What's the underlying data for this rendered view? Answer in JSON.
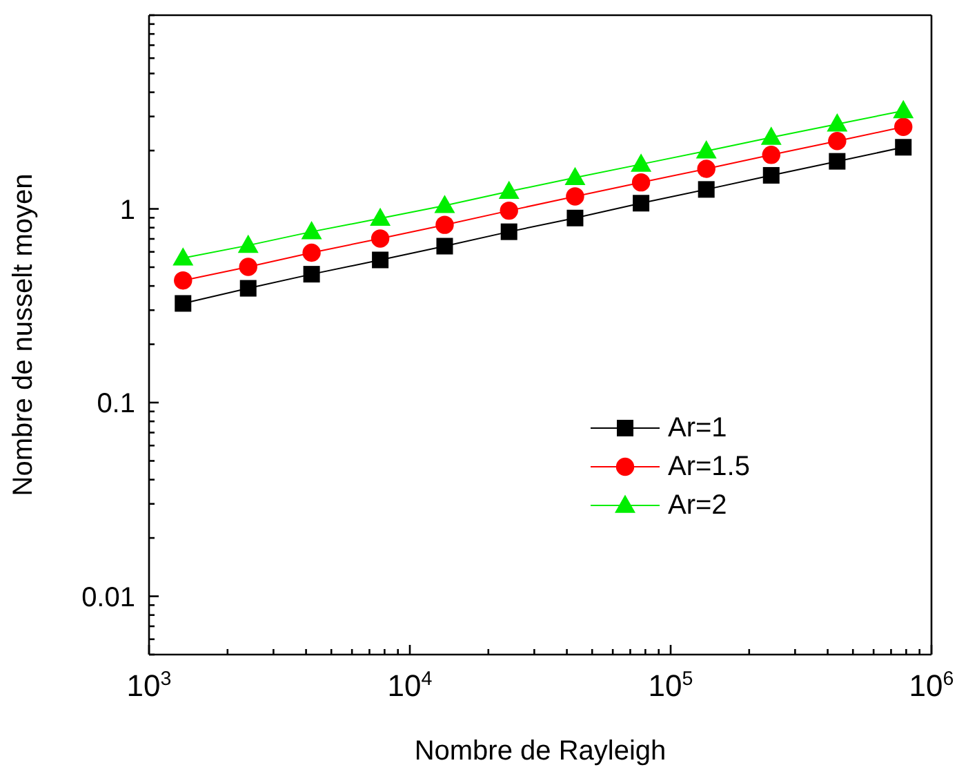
{
  "chart_data": {
    "type": "line",
    "xlabel": "Nombre de Rayleigh",
    "ylabel": "Nombre de nusselt moyen",
    "log": "xy",
    "legend": "right",
    "grid": false,
    "line_style": "solid",
    "x": [
      1350,
      2400,
      4200,
      7700,
      13600,
      24000,
      43000,
      77000,
      137000,
      243000,
      435000,
      780000
    ],
    "xlim": [
      1000,
      1000000
    ],
    "xticks": [
      {
        "value": 1000,
        "label": "10$^{3}$"
      },
      {
        "value": 2000,
        "label": null
      },
      {
        "value": 3000,
        "label": null
      },
      {
        "value": 4000,
        "label": null
      },
      {
        "value": 5000,
        "label": null
      },
      {
        "value": 6000,
        "label": null
      },
      {
        "value": 7000,
        "label": null
      },
      {
        "value": 8000,
        "label": null
      },
      {
        "value": 9000,
        "label": null
      },
      {
        "value": 10000,
        "label": "10$^{4}$"
      },
      {
        "value": 20000,
        "label": null
      },
      {
        "value": 30000,
        "label": null
      },
      {
        "value": 40000,
        "label": null
      },
      {
        "value": 50000,
        "label": null
      },
      {
        "value": 60000,
        "label": null
      },
      {
        "value": 70000,
        "label": null
      },
      {
        "value": 80000,
        "label": null
      },
      {
        "value": 90000,
        "label": null
      },
      {
        "value": 100000,
        "label": "10$^{5}$"
      },
      {
        "value": 200000,
        "label": null
      },
      {
        "value": 300000,
        "label": null
      },
      {
        "value": 400000,
        "label": null
      },
      {
        "value": 500000,
        "label": null
      },
      {
        "value": 600000,
        "label": null
      },
      {
        "value": 700000,
        "label": null
      },
      {
        "value": 800000,
        "label": null
      },
      {
        "value": 900000,
        "label": null
      },
      {
        "value": 1000000,
        "label": "10$^{6}$"
      }
    ],
    "ylim": [
      0.005,
      10
    ],
    "yticks": [
      {
        "value": 0.005,
        "label": null
      },
      {
        "value": 0.006,
        "label": null
      },
      {
        "value": 0.007,
        "label": null
      },
      {
        "value": 0.008,
        "label": null
      },
      {
        "value": 0.009,
        "label": null
      },
      0.01,
      {
        "value": 0.02,
        "label": null
      },
      {
        "value": 0.03,
        "label": null
      },
      {
        "value": 0.04,
        "label": null
      },
      {
        "value": 0.05,
        "label": null
      },
      {
        "value": 0.06,
        "label": null
      },
      {
        "value": 0.07,
        "label": null
      },
      {
        "value": 0.08,
        "label": null
      },
      {
        "value": 0.09,
        "label": null
      },
      0.1,
      {
        "value": 0.2,
        "label": null
      },
      {
        "value": 0.3,
        "label": null
      },
      {
        "value": 0.4,
        "label": null
      },
      {
        "value": 0.5,
        "label": null
      },
      {
        "value": 0.6,
        "label": null
      },
      {
        "value": 0.7,
        "label": null
      },
      {
        "value": 0.8,
        "label": null
      },
      {
        "value": 0.9,
        "label": null
      },
      1,
      {
        "value": 2,
        "label": null
      },
      {
        "value": 3,
        "label": null
      },
      {
        "value": 4,
        "label": null
      },
      {
        "value": 5,
        "label": null
      },
      {
        "value": 6,
        "label": null
      },
      {
        "value": 7,
        "label": null
      },
      {
        "value": 8,
        "label": null
      },
      {
        "value": 9,
        "label": null
      },
      {
        "value": 10,
        "label": null
      }
    ],
    "series": [
      {
        "name": "Ar=1",
        "color": "#000000",
        "marker": "square",
        "values": [
          0.325,
          0.389,
          0.46,
          0.545,
          0.642,
          0.762,
          0.897,
          1.07,
          1.26,
          1.49,
          1.76,
          2.08
        ]
      },
      {
        "name": "Ar=1.5",
        "color": "#ff0000",
        "marker": "circle",
        "values": [
          0.427,
          0.502,
          0.594,
          0.703,
          0.827,
          0.979,
          1.16,
          1.37,
          1.61,
          1.9,
          2.24,
          2.65
        ]
      },
      {
        "name": "Ar=2",
        "color": "#00ee00",
        "marker": "triangle",
        "values": [
          0.557,
          0.648,
          0.762,
          0.893,
          1.04,
          1.23,
          1.45,
          1.7,
          1.99,
          2.34,
          2.74,
          3.21
        ]
      }
    ]
  }
}
